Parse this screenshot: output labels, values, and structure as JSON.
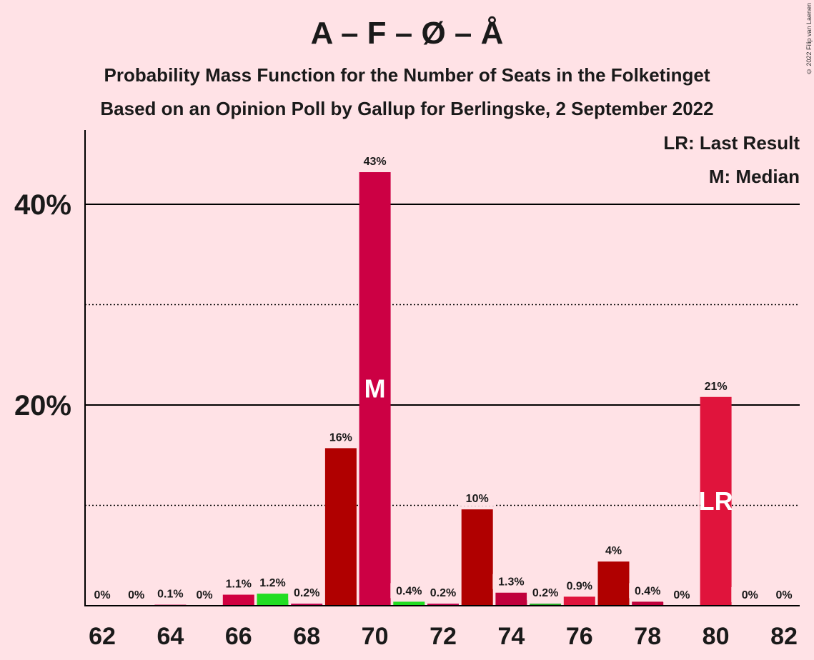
{
  "chart_data": {
    "type": "bar",
    "title": "A – F – Ø – Å",
    "subtitle_1": "Probability Mass Function for the Number of Seats in the Folketinget",
    "subtitle_2": "Based on an Opinion Poll by Gallup for Berlingske, 2 September 2022",
    "copyright": "© 2022 Filip van Laenen",
    "legend": {
      "last_result": "LR: Last Result",
      "median": "M: Median",
      "placement": "top-right"
    },
    "x": [
      62,
      63,
      64,
      65,
      66,
      67,
      68,
      69,
      70,
      71,
      72,
      73,
      74,
      75,
      76,
      77,
      78,
      79,
      80,
      81,
      82
    ],
    "values": [
      0,
      0,
      0.1,
      0,
      1.1,
      1.2,
      0.2,
      15.7,
      43.2,
      0.4,
      0.2,
      9.6,
      1.3,
      0.2,
      0.9,
      4.4,
      0.4,
      0,
      20.8,
      0,
      0
    ],
    "data_labels": [
      "0%",
      "0%",
      "0.1%",
      "0%",
      "1.1%",
      "1.2%",
      "0.2%",
      "16%",
      "43%",
      "0.4%",
      "0.2%",
      "10%",
      "1.3%",
      "0.2%",
      "0.9%",
      "4%",
      "0.4%",
      "0%",
      "21%",
      "0%",
      "0%"
    ],
    "bar_colors": [
      "#c0004a",
      "#c0004a",
      "#c0004a",
      "#c0004a",
      "#d00040",
      "#22dd22",
      "#c0004a",
      "#b00000",
      "#cc0044",
      "#22dd22",
      "#c0004a",
      "#b00000",
      "#c0003c",
      "#22aa22",
      "#e0143c",
      "#b00000",
      "#c0003c",
      "#c0004a",
      "#e0143c",
      "#c0004a",
      "#c0004a"
    ],
    "x_tick_labels": [
      "62",
      "64",
      "66",
      "68",
      "70",
      "72",
      "74",
      "76",
      "78",
      "80",
      "82"
    ],
    "y_tick_labels": [
      "20%",
      "40%"
    ],
    "y_major_ticks": [
      20,
      40
    ],
    "y_minor_ticks": [
      10,
      30
    ],
    "ylim": [
      0,
      47.5
    ],
    "median_seat": 70,
    "median_marker": "M",
    "last_result_seat": 80,
    "last_result_marker": "LR",
    "marker_color": "#ffffff"
  }
}
